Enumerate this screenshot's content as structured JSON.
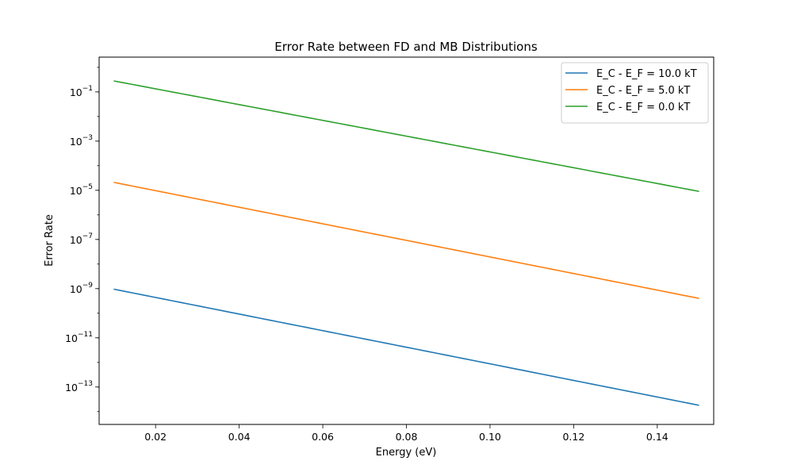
{
  "chart_data": {
    "type": "line",
    "title": "Error Rate between FD and MB Distributions",
    "xlabel": "Energy (eV)",
    "ylabel": "Error Rate",
    "xlim": [
      0.0065,
      0.1535
    ],
    "ylim": [
      3e-15,
      2.6
    ],
    "yscale": "log",
    "xticks": [
      0.02,
      0.04,
      0.06,
      0.08,
      0.1,
      0.12,
      0.14
    ],
    "xtick_labels": [
      "0.02",
      "0.04",
      "0.06",
      "0.08",
      "0.10",
      "0.12",
      "0.14"
    ],
    "yticks": [
      {
        "value": 0.1,
        "base": "10",
        "exp": "−1"
      },
      {
        "value": 0.001,
        "base": "10",
        "exp": "−3"
      },
      {
        "value": 1e-05,
        "base": "10",
        "exp": "−5"
      },
      {
        "value": 1e-07,
        "base": "10",
        "exp": "−7"
      },
      {
        "value": 1e-09,
        "base": "10",
        "exp": "−9"
      },
      {
        "value": 1e-11,
        "base": "10",
        "exp": "−11"
      },
      {
        "value": 1e-13,
        "base": "10",
        "exp": "−13"
      }
    ],
    "legend_position": "top-right",
    "grid": false,
    "series": [
      {
        "name": "E_C - E_F = 10.0 kT",
        "color": "#1f77b4",
        "x": [
          0.01,
          0.15
        ],
        "y": [
          9.5e-10,
          1.8e-14
        ]
      },
      {
        "name": "E_C - E_F = 5.0 kT",
        "color": "#ff7f0e",
        "x": [
          0.01,
          0.15
        ],
        "y": [
          2.1e-05,
          4e-10
        ]
      },
      {
        "name": "E_C - E_F = 0.0 kT",
        "color": "#2ca02c",
        "x": [
          0.01,
          0.15
        ],
        "y": [
          0.28,
          9e-06
        ]
      }
    ]
  }
}
